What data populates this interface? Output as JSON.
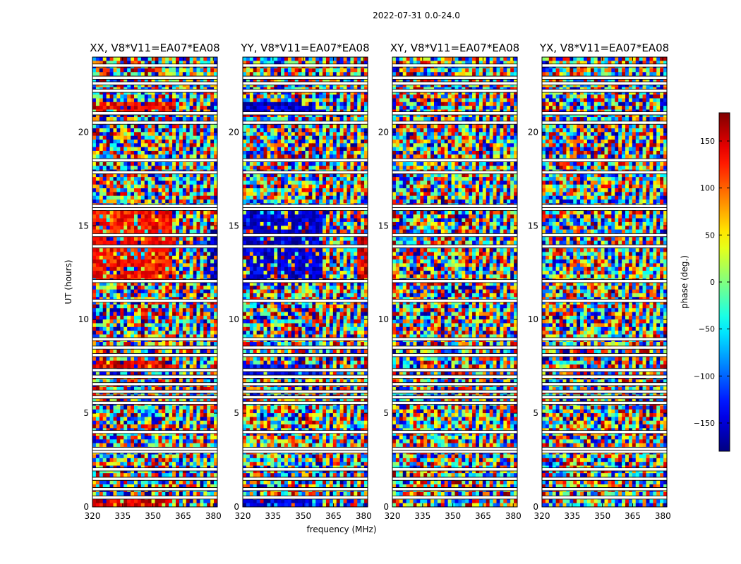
{
  "figure": {
    "suptitle": "2022-07-31 0.0-24.0"
  },
  "chart_data": [
    {
      "type": "heatmap",
      "title": "XX, V8*V11=EA07*EA08",
      "xlabel": "frequency (MHz)",
      "ylabel": "UT (hours)",
      "xlim": [
        320,
        382
      ],
      "ylim": [
        0,
        24
      ],
      "xticks": [
        320,
        335,
        350,
        365,
        380
      ],
      "yticks": [
        0,
        5,
        10,
        15,
        20
      ],
      "value_range": [
        -180,
        180
      ],
      "features": [
        {
          "t_start": 21.0,
          "t_end": 21.5,
          "f_start": 320,
          "f_end": 359,
          "phase": 140
        },
        {
          "t_start": 12.0,
          "t_end": 16.0,
          "f_start": 320,
          "f_end": 359,
          "phase": 130
        },
        {
          "t_start": 0.0,
          "t_end": 0.5,
          "f_start": 320,
          "f_end": 359,
          "phase": 150
        },
        {
          "t_start": 7.5,
          "t_end": 7.8,
          "f_start": 320,
          "f_end": 359,
          "phase": 145
        },
        {
          "t_start": 12.0,
          "t_end": 15.0,
          "f_start": 376,
          "f_end": 382,
          "phase": -160
        },
        {
          "t_start": 21.0,
          "t_end": 21.5,
          "f_start": 376,
          "f_end": 382,
          "phase": -160
        }
      ]
    },
    {
      "type": "heatmap",
      "title": "YY, V8*V11=EA07*EA08",
      "xlabel": "frequency (MHz)",
      "ylabel": "",
      "xlim": [
        320,
        382
      ],
      "ylim": [
        0,
        24
      ],
      "xticks": [
        320,
        335,
        350,
        365,
        380
      ],
      "yticks": [
        0,
        5,
        10,
        15,
        20
      ],
      "value_range": [
        -180,
        180
      ],
      "features": [
        {
          "t_start": 21.0,
          "t_end": 21.5,
          "f_start": 320,
          "f_end": 359,
          "phase": -155
        },
        {
          "t_start": 12.0,
          "t_end": 16.0,
          "f_start": 320,
          "f_end": 359,
          "phase": -150
        },
        {
          "t_start": 0.0,
          "t_end": 0.5,
          "f_start": 320,
          "f_end": 359,
          "phase": -150
        },
        {
          "t_start": 7.0,
          "t_end": 7.6,
          "f_start": 320,
          "f_end": 359,
          "phase": -140
        },
        {
          "t_start": 12.0,
          "t_end": 15.0,
          "f_start": 376,
          "f_end": 382,
          "phase": 150
        }
      ]
    },
    {
      "type": "heatmap",
      "title": "XY, V8*V11=EA07*EA08",
      "xlabel": "frequency (MHz)",
      "ylabel": "",
      "xlim": [
        320,
        382
      ],
      "ylim": [
        0,
        24
      ],
      "xticks": [
        320,
        335,
        350,
        365,
        380
      ],
      "yticks": [
        0,
        5,
        10,
        15,
        20
      ],
      "value_range": [
        -180,
        180
      ],
      "features": []
    },
    {
      "type": "heatmap",
      "title": "YX, V8*V11=EA07*EA08",
      "xlabel": "frequency (MHz)",
      "ylabel": "",
      "xlim": [
        320,
        382
      ],
      "ylim": [
        0,
        24
      ],
      "xticks": [
        320,
        335,
        350,
        365,
        380
      ],
      "yticks": [
        0,
        5,
        10,
        15,
        20
      ],
      "value_range": [
        -180,
        180
      ],
      "features": []
    }
  ],
  "gaps_ut_hours": [
    0.5,
    0.95,
    1.5,
    2.0,
    2.95,
    3.1,
    4.0,
    5.55,
    5.85,
    6.15,
    6.55,
    6.95,
    7.3,
    8.1,
    8.5,
    8.95,
    11.0,
    12.05,
    13.9,
    14.5,
    15.9,
    16.05,
    17.85,
    18.5,
    20.5,
    21.0,
    22.2,
    22.6,
    22.9,
    23.55
  ],
  "colorbar": {
    "label": "phase (deg.)",
    "range": [
      -180,
      180
    ],
    "ticks": [
      -150,
      -100,
      -50,
      0,
      50,
      100,
      150
    ],
    "tick_labels": [
      "−150",
      "−100",
      "−50",
      "0",
      "50",
      "100",
      "150"
    ],
    "colormap": "jet"
  }
}
